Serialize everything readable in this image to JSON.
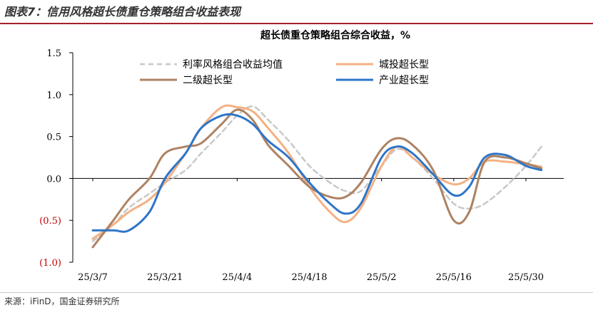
{
  "figure": {
    "title": "图表7：信用风格超长债重仓策略组合收益表现",
    "source": "来源：iFinD，国金证券研究所"
  },
  "colors": {
    "title_rule": "#a8202a",
    "negative_tick": "#c00000",
    "axis": "#000000"
  },
  "chart_data": {
    "type": "line",
    "title": "超长债重仓策略组合综合收益，%",
    "xlabel": "",
    "ylabel": "",
    "ylim": [
      -1.0,
      1.5
    ],
    "y_ticks": [
      {
        "value": 1.5,
        "label": "1.5",
        "negative": false
      },
      {
        "value": 1.0,
        "label": "1.0",
        "negative": false
      },
      {
        "value": 0.5,
        "label": "0.5",
        "negative": false
      },
      {
        "value": 0.0,
        "label": "0.0",
        "negative": false
      },
      {
        "value": -0.5,
        "label": "(0.5)",
        "negative": true
      },
      {
        "value": -1.0,
        "label": "(1.0)",
        "negative": true
      }
    ],
    "x_tick_labels": [
      "25/3/7",
      "25/3/21",
      "25/4/4",
      "25/4/18",
      "25/5/2",
      "25/5/16",
      "25/5/30"
    ],
    "grid": false,
    "legend_position": "top",
    "series": [
      {
        "name": "利率风格组合收益均值",
        "color": "#c8c8c8",
        "dashed": true,
        "points": [
          [
            "25/3/7",
            -0.75
          ],
          [
            "25/3/11",
            -0.55
          ],
          [
            "25/3/14",
            -0.35
          ],
          [
            "25/3/18",
            -0.18
          ],
          [
            "25/3/21",
            -0.05
          ],
          [
            "25/3/25",
            0.1
          ],
          [
            "25/3/28",
            0.3
          ],
          [
            "25/4/1",
            0.55
          ],
          [
            "25/4/4",
            0.75
          ],
          [
            "25/4/7",
            0.86
          ],
          [
            "25/4/10",
            0.7
          ],
          [
            "25/4/14",
            0.45
          ],
          [
            "25/4/18",
            0.15
          ],
          [
            "25/4/22",
            -0.05
          ],
          [
            "25/4/25",
            -0.15
          ],
          [
            "25/4/28",
            -0.15
          ],
          [
            "25/5/2",
            0.15
          ],
          [
            "25/5/5",
            0.35
          ],
          [
            "25/5/8",
            0.25
          ],
          [
            "25/5/12",
            0.0
          ],
          [
            "25/5/16",
            -0.3
          ],
          [
            "25/5/19",
            -0.36
          ],
          [
            "25/5/22",
            -0.3
          ],
          [
            "25/5/26",
            -0.1
          ],
          [
            "25/5/30",
            0.15
          ],
          [
            "25/6/2",
            0.38
          ]
        ]
      },
      {
        "name": "城投超长型",
        "color": "#f4b183",
        "dashed": false,
        "points": [
          [
            "25/3/7",
            -0.72
          ],
          [
            "25/3/11",
            -0.55
          ],
          [
            "25/3/14",
            -0.4
          ],
          [
            "25/3/18",
            -0.25
          ],
          [
            "25/3/21",
            -0.05
          ],
          [
            "25/3/25",
            0.3
          ],
          [
            "25/3/28",
            0.6
          ],
          [
            "25/4/1",
            0.85
          ],
          [
            "25/4/4",
            0.85
          ],
          [
            "25/4/7",
            0.8
          ],
          [
            "25/4/10",
            0.6
          ],
          [
            "25/4/14",
            0.3
          ],
          [
            "25/4/18",
            -0.1
          ],
          [
            "25/4/22",
            -0.4
          ],
          [
            "25/4/25",
            -0.52
          ],
          [
            "25/4/28",
            -0.35
          ],
          [
            "25/5/2",
            0.15
          ],
          [
            "25/5/5",
            0.38
          ],
          [
            "25/5/8",
            0.25
          ],
          [
            "25/5/12",
            0.05
          ],
          [
            "25/5/16",
            -0.07
          ],
          [
            "25/5/19",
            0.0
          ],
          [
            "25/5/22",
            0.2
          ],
          [
            "25/5/26",
            0.2
          ],
          [
            "25/5/30",
            0.17
          ],
          [
            "25/6/2",
            0.14
          ]
        ]
      },
      {
        "name": "二级超长型",
        "color": "#ae8262",
        "dashed": false,
        "points": [
          [
            "25/3/7",
            -0.82
          ],
          [
            "25/3/11",
            -0.5
          ],
          [
            "25/3/14",
            -0.25
          ],
          [
            "25/3/18",
            0.0
          ],
          [
            "25/3/21",
            0.3
          ],
          [
            "25/3/25",
            0.38
          ],
          [
            "25/3/28",
            0.42
          ],
          [
            "25/4/1",
            0.65
          ],
          [
            "25/4/4",
            0.82
          ],
          [
            "25/4/7",
            0.7
          ],
          [
            "25/4/10",
            0.4
          ],
          [
            "25/4/14",
            0.15
          ],
          [
            "25/4/18",
            -0.1
          ],
          [
            "25/4/22",
            -0.22
          ],
          [
            "25/4/25",
            -0.22
          ],
          [
            "25/4/28",
            -0.05
          ],
          [
            "25/5/2",
            0.35
          ],
          [
            "25/5/5",
            0.48
          ],
          [
            "25/5/8",
            0.4
          ],
          [
            "25/5/12",
            0.1
          ],
          [
            "25/5/16",
            -0.5
          ],
          [
            "25/5/19",
            -0.4
          ],
          [
            "25/5/22",
            0.2
          ],
          [
            "25/5/26",
            0.25
          ],
          [
            "25/5/30",
            0.18
          ],
          [
            "25/6/2",
            0.12
          ]
        ]
      },
      {
        "name": "产业超长型",
        "color": "#2e75c8",
        "dashed": false,
        "points": [
          [
            "25/3/7",
            -0.62
          ],
          [
            "25/3/11",
            -0.62
          ],
          [
            "25/3/14",
            -0.62
          ],
          [
            "25/3/18",
            -0.4
          ],
          [
            "25/3/21",
            0.0
          ],
          [
            "25/3/25",
            0.3
          ],
          [
            "25/3/28",
            0.6
          ],
          [
            "25/4/1",
            0.75
          ],
          [
            "25/4/4",
            0.75
          ],
          [
            "25/4/7",
            0.65
          ],
          [
            "25/4/10",
            0.45
          ],
          [
            "25/4/14",
            0.25
          ],
          [
            "25/4/18",
            -0.05
          ],
          [
            "25/4/22",
            -0.3
          ],
          [
            "25/4/25",
            -0.42
          ],
          [
            "25/4/28",
            -0.3
          ],
          [
            "25/5/2",
            0.25
          ],
          [
            "25/5/5",
            0.38
          ],
          [
            "25/5/8",
            0.3
          ],
          [
            "25/5/12",
            0.05
          ],
          [
            "25/5/16",
            -0.2
          ],
          [
            "25/5/19",
            -0.1
          ],
          [
            "25/5/22",
            0.25
          ],
          [
            "25/5/26",
            0.28
          ],
          [
            "25/5/30",
            0.15
          ],
          [
            "25/6/2",
            0.1
          ]
        ]
      }
    ]
  }
}
